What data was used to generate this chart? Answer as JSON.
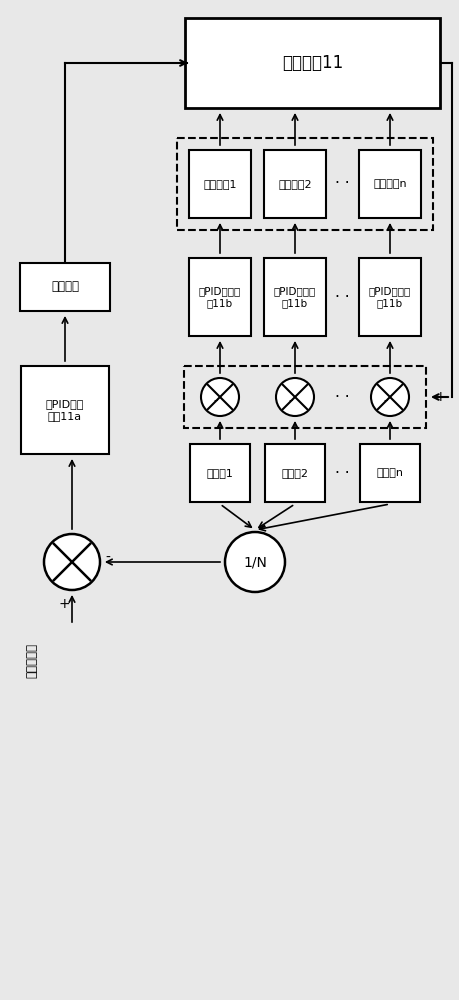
{
  "bg_color": "#e8e8e8",
  "box_color": "#ffffff",
  "line_color": "#000000",
  "figsize": [
    4.59,
    10.0
  ],
  "dpi": 100,
  "control_unit_label": "控制单元11",
  "total_pid_label": "总PID运算\n模块11a",
  "total_control_label": "总控制值",
  "sub_pid_labels": [
    "分PID运算模\n块11b",
    "分PID运算模\n块11b",
    "分PID运算模\n块11b"
  ],
  "sub_ctrl_labels": [
    "分控制值1",
    "分控制值2",
    "分控制值n"
  ],
  "temp_labels": [
    "温度值1",
    "温度值2",
    "温度值n"
  ],
  "avg_label": "1/N",
  "target_temp_label": "目标温度值",
  "dots_str": "· · ·"
}
